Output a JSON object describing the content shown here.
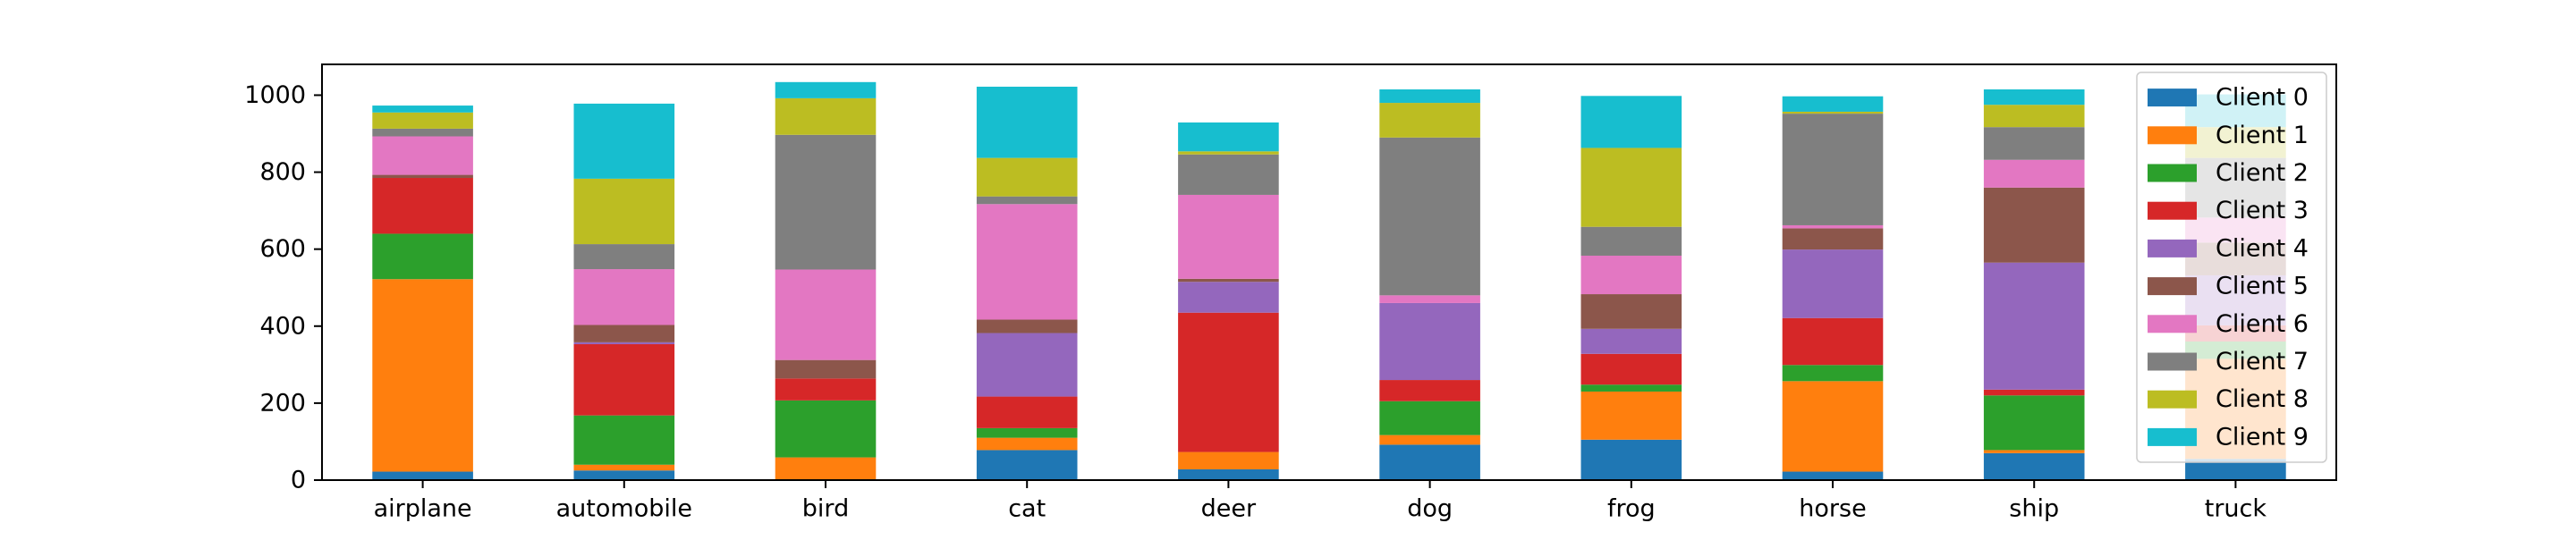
{
  "chart_data": {
    "type": "bar",
    "stacked": true,
    "title": "",
    "xlabel": "",
    "ylabel": "",
    "ylim": [
      0,
      1080
    ],
    "yticks": [
      0,
      200,
      400,
      600,
      800,
      1000
    ],
    "grid": false,
    "legend_position": "top-right",
    "categories": [
      "airplane",
      "automobile",
      "bird",
      "cat",
      "deer",
      "dog",
      "frog",
      "horse",
      "ship",
      "truck"
    ],
    "series": [
      {
        "name": "Client 0",
        "color": "#1f77b4",
        "values": [
          22,
          25,
          2,
          78,
          28,
          92,
          105,
          22,
          70,
          55
        ]
      },
      {
        "name": "Client 1",
        "color": "#ff7f0e",
        "values": [
          500,
          15,
          57,
          32,
          45,
          25,
          125,
          235,
          8,
          260
        ]
      },
      {
        "name": "Client 2",
        "color": "#2ca02c",
        "values": [
          118,
          128,
          148,
          25,
          0,
          88,
          18,
          42,
          142,
          45
        ]
      },
      {
        "name": "Client 3",
        "color": "#d62728",
        "values": [
          145,
          185,
          57,
          82,
          362,
          55,
          80,
          122,
          15,
          42
        ]
      },
      {
        "name": "Client 4",
        "color": "#9467bd",
        "values": [
          0,
          5,
          0,
          165,
          80,
          200,
          65,
          178,
          330,
          130
        ]
      },
      {
        "name": "Client 5",
        "color": "#8c564b",
        "values": [
          8,
          45,
          48,
          35,
          8,
          0,
          90,
          55,
          195,
          85
        ]
      },
      {
        "name": "Client 6",
        "color": "#e377c2",
        "values": [
          100,
          145,
          235,
          300,
          218,
          20,
          100,
          8,
          72,
          65
        ]
      },
      {
        "name": "Client 7",
        "color": "#7f7f7f",
        "values": [
          20,
          65,
          350,
          20,
          105,
          410,
          75,
          290,
          85,
          155
        ]
      },
      {
        "name": "Client 8",
        "color": "#bcbd22",
        "values": [
          42,
          170,
          95,
          100,
          8,
          90,
          205,
          5,
          58,
          80
        ]
      },
      {
        "name": "Client 9",
        "color": "#17becf",
        "values": [
          18,
          195,
          42,
          185,
          75,
          35,
          135,
          40,
          40,
          85
        ]
      }
    ]
  }
}
